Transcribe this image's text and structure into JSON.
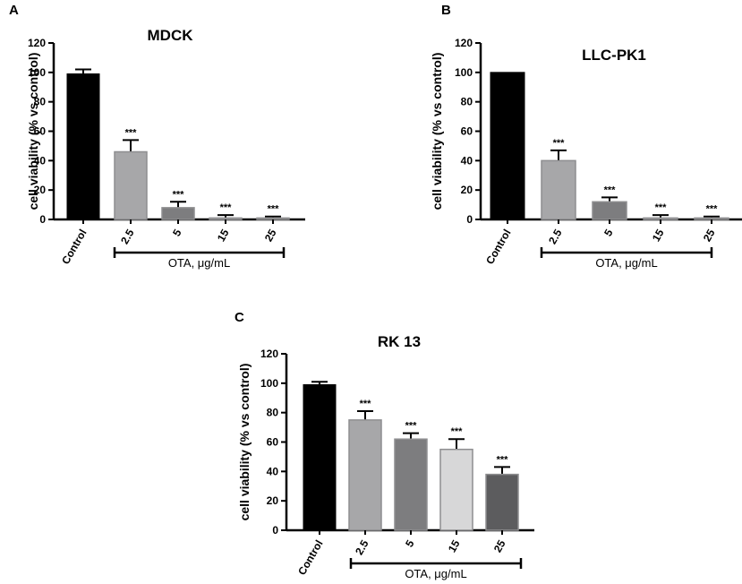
{
  "chart_data": [
    {
      "panel": "A",
      "type": "bar",
      "title": "MDCK",
      "ylabel": "cell viability (% vs control)",
      "xlabel": "",
      "ylim": [
        0,
        120
      ],
      "yticks": [
        0,
        20,
        40,
        60,
        80,
        100,
        120
      ],
      "categories": [
        "Control",
        "2.5",
        "5",
        "15",
        "25"
      ],
      "values": [
        99,
        46,
        8,
        1,
        1
      ],
      "errors": [
        3,
        8,
        4,
        2,
        1
      ],
      "significance": [
        "",
        "***",
        "***",
        "***",
        "***"
      ],
      "bar_colors": [
        "#000000",
        "#a7a7a9",
        "#7d7d7f",
        "#d7d7d8",
        "#5c5c5e"
      ],
      "group_label": "OTA, μg/mL"
    },
    {
      "panel": "B",
      "type": "bar",
      "title": "LLC-PK1",
      "ylabel": "cell viability (% vs control)",
      "xlabel": "",
      "ylim": [
        0,
        120
      ],
      "yticks": [
        0,
        20,
        40,
        60,
        80,
        100,
        120
      ],
      "categories": [
        "Control",
        "2.5",
        "5",
        "15",
        "25"
      ],
      "values": [
        100,
        40,
        12,
        1,
        1
      ],
      "errors": [
        0,
        7,
        3,
        2,
        1
      ],
      "significance": [
        "",
        "***",
        "***",
        "***",
        "***"
      ],
      "bar_colors": [
        "#000000",
        "#a7a7a9",
        "#7d7d7f",
        "#d7d7d8",
        "#5c5c5e"
      ],
      "group_label": "OTA, μg/mL"
    },
    {
      "panel": "C",
      "type": "bar",
      "title": "RK 13",
      "ylabel": "cell viability (% vs control)",
      "xlabel": "",
      "ylim": [
        0,
        120
      ],
      "yticks": [
        0,
        20,
        40,
        60,
        80,
        100,
        120
      ],
      "categories": [
        "Control",
        "2.5",
        "5",
        "15",
        "25"
      ],
      "values": [
        99,
        75,
        62,
        55,
        38
      ],
      "errors": [
        2,
        6,
        4,
        7,
        5
      ],
      "significance": [
        "",
        "***",
        "***",
        "***",
        "***"
      ],
      "bar_colors": [
        "#000000",
        "#a7a7a9",
        "#7d7d7f",
        "#d7d7d8",
        "#5c5c5e"
      ],
      "group_label": "OTA, μg/mL"
    }
  ]
}
